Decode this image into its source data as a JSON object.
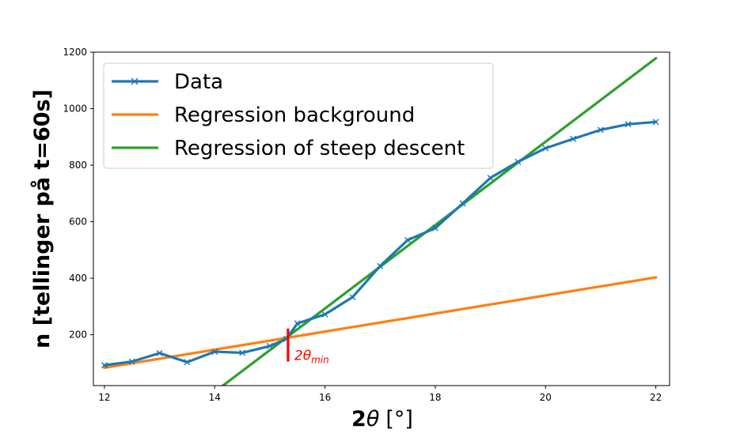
{
  "chart_data": {
    "type": "line",
    "xlabel_parts": {
      "num": "2",
      "theta": "θ",
      "unit": "[°]"
    },
    "ylabel": "n [tellinger på t=60s]",
    "xlim": [
      11.8,
      22.25
    ],
    "ylim": [
      20,
      1200
    ],
    "xticks": [
      12,
      14,
      16,
      18,
      20,
      22
    ],
    "yticks": [
      200,
      400,
      600,
      800,
      1000,
      1200
    ],
    "grid": false,
    "legend_position": "upper-left",
    "colors": {
      "data": "#1f77b4",
      "background": "#ff7f0e",
      "steep": "#2ca02c",
      "annotation": "#ff0000"
    },
    "series": [
      {
        "name": "Data",
        "marker": "x",
        "x": [
          12,
          12.5,
          13,
          13.5,
          14,
          14.5,
          15,
          15.3,
          15.5,
          16,
          16.5,
          17,
          17.5,
          18,
          18.5,
          19,
          19.5,
          20,
          20.5,
          21,
          21.5,
          22
        ],
        "y": [
          92,
          105,
          135,
          103,
          140,
          136,
          160,
          185,
          240,
          272,
          333,
          443,
          535,
          577,
          665,
          755,
          812,
          860,
          893,
          925,
          945,
          953
        ]
      },
      {
        "name": "Regression background",
        "x": [
          12,
          22
        ],
        "y": [
          83,
          403
        ]
      },
      {
        "name": "Regression of steep descent",
        "x": [
          14.15,
          22
        ],
        "y": [
          20,
          1178
        ]
      }
    ],
    "annotation": {
      "x": 15.33,
      "y_range": [
        105,
        222
      ],
      "label": {
        "base": "2θ",
        "sub": "min"
      }
    }
  }
}
